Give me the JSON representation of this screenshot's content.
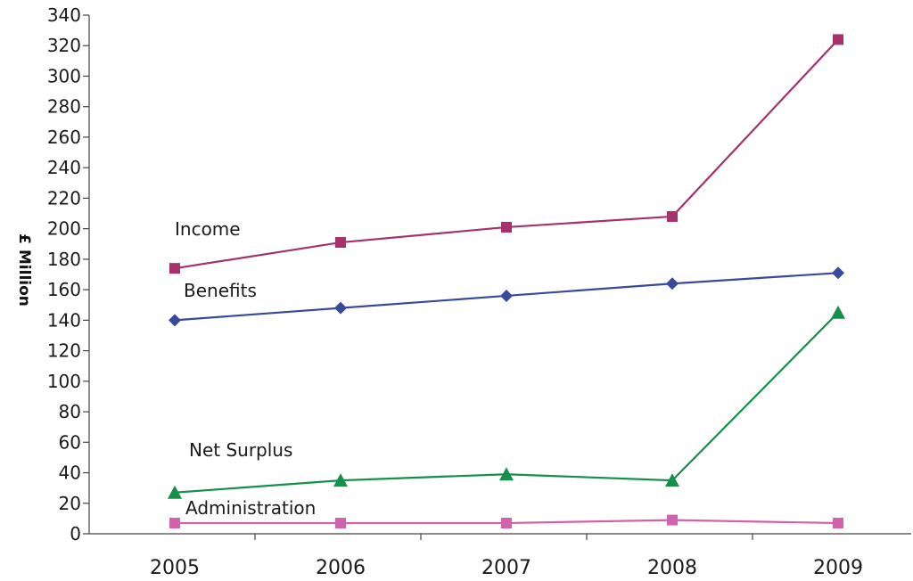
{
  "chart_data": {
    "type": "line",
    "ylabel": "£ Million",
    "xlabel": "",
    "title": "",
    "ylim": [
      0,
      340
    ],
    "ytick_step": 20,
    "x": [
      "2005",
      "2006",
      "2007",
      "2008",
      "2009"
    ],
    "grid": false,
    "series": [
      {
        "name": "Income",
        "marker": "square",
        "color": "#a5326b",
        "values": [
          174,
          191,
          201,
          208,
          324
        ]
      },
      {
        "name": "Benefits",
        "marker": "diamond",
        "color": "#3a4a9b",
        "values": [
          140,
          148,
          156,
          164,
          171
        ]
      },
      {
        "name": "Net Surplus",
        "marker": "triangle",
        "color": "#15904a",
        "values": [
          27,
          35,
          39,
          35,
          145
        ]
      },
      {
        "name": "Administration",
        "marker": "square",
        "color": "#d163ad",
        "values": [
          7,
          7,
          7,
          9,
          7
        ]
      }
    ]
  }
}
